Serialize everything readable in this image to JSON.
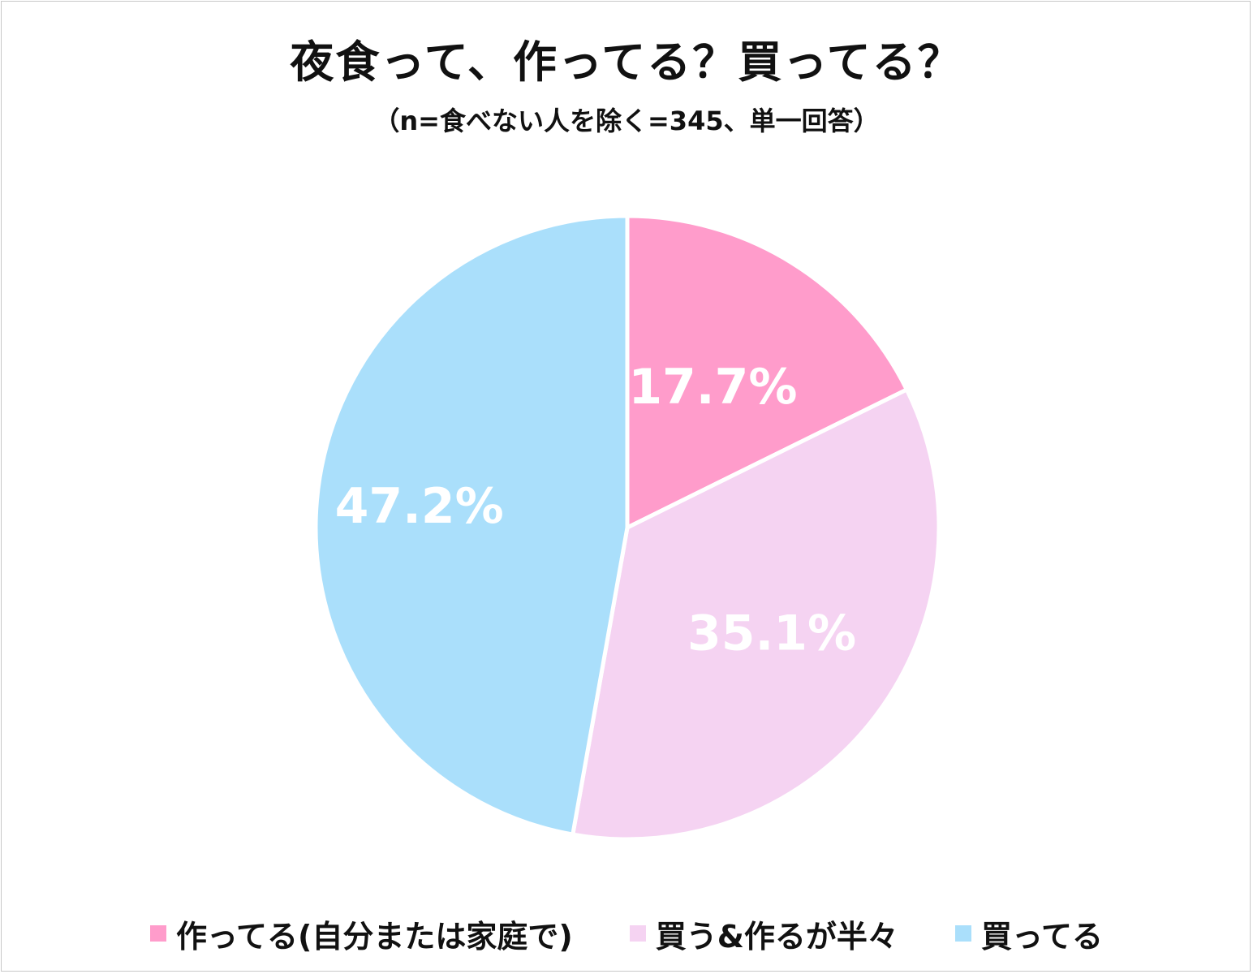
{
  "title": "夜食って、作ってる？買ってる？",
  "subtitle": "（n=食べない人を除く=345、単一回答）",
  "chart_data": {
    "type": "pie",
    "title": "夜食って、作ってる？買ってる？",
    "subtitle": "（n=食べない人を除く=345、単一回答）",
    "categories": [
      "作ってる(自分または家庭で)",
      "買う&作るが半々",
      "買ってる"
    ],
    "values": [
      17.7,
      35.1,
      47.2
    ],
    "labels": [
      "17.7%",
      "35.1%",
      "47.2%"
    ],
    "colors": [
      "#ff9ccb",
      "#f5d3f2",
      "#aadffb"
    ],
    "start_angle": "12 o'clock",
    "direction": "clockwise",
    "legend_position": "bottom"
  }
}
